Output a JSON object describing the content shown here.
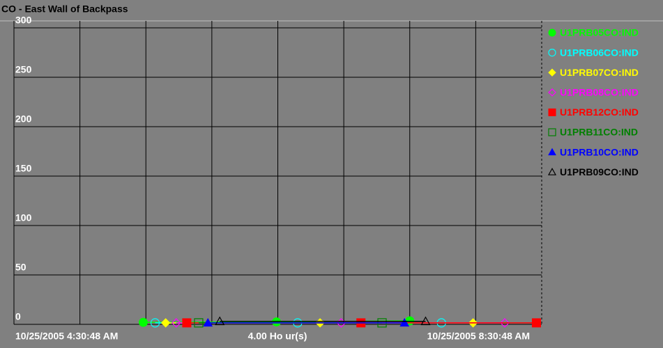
{
  "chart_data": {
    "type": "line",
    "title": "CO - East Wall of Backpass",
    "x_start_label": "10/25/2005 4:30:48 AM",
    "x_span_label": "4.00 Ho ur(s)",
    "x_end_label": "10/25/2005 8:30:48 AM",
    "xlim": [
      0,
      4
    ],
    "xgrid_divisions": 8,
    "ylim": [
      0,
      300
    ],
    "yticks": [
      0,
      50,
      100,
      150,
      200,
      250,
      300
    ],
    "grid": true,
    "legend": "right",
    "series": [
      {
        "name": "U1PRB05CO:IND",
        "color": "#00ff00",
        "marker": "circle",
        "x": [
          0.98,
          1.99,
          3.0
        ],
        "values": [
          2,
          2.5,
          3.5
        ]
      },
      {
        "name": "U1PRB06CO:IND",
        "color": "#00ffff",
        "marker": "circle-open",
        "x": [
          1.07,
          2.15,
          3.24
        ],
        "values": [
          1.5,
          1.5,
          1.5
        ]
      },
      {
        "name": "U1PRB07CO:IND",
        "color": "#ffff00",
        "marker": "diamond",
        "x": [
          1.15,
          2.32,
          3.48
        ],
        "values": [
          1.5,
          1.5,
          1.5
        ]
      },
      {
        "name": "U1PRB08CO:IND",
        "color": "#ff00ff",
        "marker": "diamond-open",
        "x": [
          1.23,
          2.48,
          3.72
        ],
        "values": [
          1.5,
          1.5,
          1.5
        ]
      },
      {
        "name": "U1PRB12CO:IND",
        "color": "#ff0000",
        "marker": "square",
        "x": [
          1.31,
          2.63,
          3.96
        ],
        "values": [
          1.5,
          1.5,
          1.5
        ]
      },
      {
        "name": "U1PRB11CO:IND",
        "color": "#008000",
        "marker": "square-open",
        "x": [
          1.4,
          2.79
        ],
        "values": [
          1.5,
          1.5
        ]
      },
      {
        "name": "U1PRB10CO:IND",
        "color": "#0000ff",
        "marker": "triangle",
        "x": [
          1.47,
          2.96
        ],
        "values": [
          1.5,
          1.5
        ]
      },
      {
        "name": "U1PRB09CO:IND",
        "color": "#000000",
        "marker": "triangle-open",
        "x": [
          1.56,
          3.12
        ],
        "values": [
          3,
          3
        ]
      }
    ]
  }
}
